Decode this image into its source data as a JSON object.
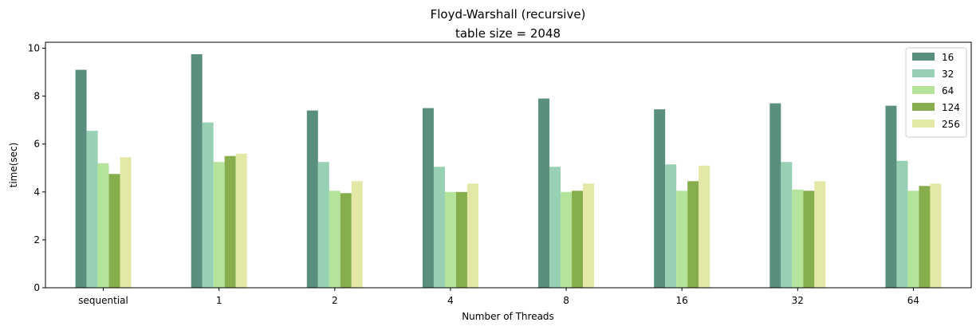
{
  "chart_data": {
    "type": "bar",
    "title": "Floyd-Warshall (recursive)",
    "subtitle": "table size = 2048",
    "xlabel": "Number of Threads",
    "ylabel": "time(sec)",
    "ylim": [
      0,
      10.25
    ],
    "yticks": [
      "0",
      "2",
      "4",
      "6",
      "8",
      "10"
    ],
    "categories": [
      "sequential",
      "1",
      "2",
      "4",
      "8",
      "16",
      "32",
      "64"
    ],
    "legend_position": "top-right",
    "grid": false,
    "series": [
      {
        "name": "16",
        "color": "#5a8f7f",
        "values": [
          9.1,
          9.75,
          7.4,
          7.5,
          7.9,
          7.45,
          7.7,
          7.6
        ]
      },
      {
        "name": "32",
        "color": "#97d0b2",
        "values": [
          6.55,
          6.9,
          5.25,
          5.05,
          5.05,
          5.15,
          5.25,
          5.3
        ]
      },
      {
        "name": "64",
        "color": "#b4e49c",
        "values": [
          5.2,
          5.25,
          4.05,
          4.0,
          4.0,
          4.05,
          4.1,
          4.05
        ]
      },
      {
        "name": "124",
        "color": "#87ae4c",
        "values": [
          4.75,
          5.5,
          3.95,
          4.0,
          4.05,
          4.45,
          4.05,
          4.25
        ]
      },
      {
        "name": "256",
        "color": "#e3e8a7",
        "values": [
          5.45,
          5.6,
          4.45,
          4.35,
          4.35,
          5.1,
          4.45,
          4.35
        ]
      }
    ]
  }
}
